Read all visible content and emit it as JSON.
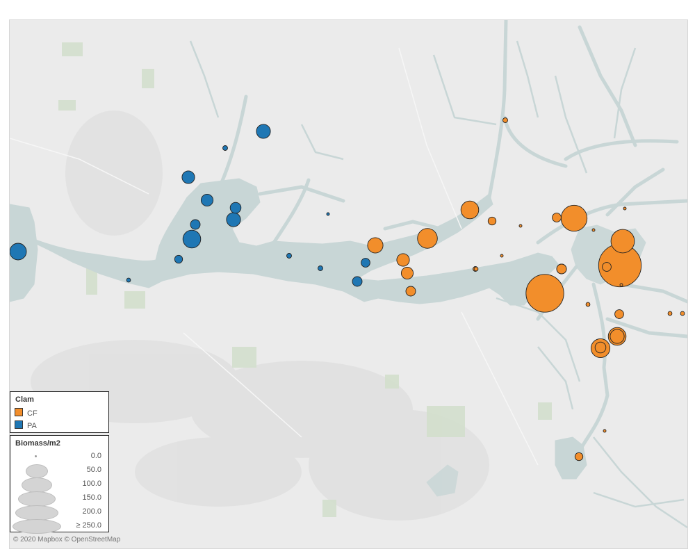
{
  "legend": {
    "clam_title": "Clam",
    "species": [
      {
        "label": "CF",
        "color": "#f28e2b"
      },
      {
        "label": "PA",
        "color": "#1f77b4"
      }
    ],
    "size_title": "Biomass/m2",
    "size_steps": [
      "0.0",
      "50.0",
      "100.0",
      "150.0",
      "200.0",
      "≥ 250.0"
    ]
  },
  "attribution": "© 2020 Mapbox © OpenStreetMap",
  "chart_data": {
    "type": "scatter",
    "encoding": "proportional symbol map; color = Clam species, circle size = Biomass/m2",
    "series": [
      {
        "name": "PA",
        "color": "#1f77b4",
        "points": [
          {
            "biomass": 35
          },
          {
            "biomass": 25
          },
          {
            "biomass": 3
          },
          {
            "biomass": 20
          },
          {
            "biomass": 18
          },
          {
            "biomass": 15
          },
          {
            "biomass": 25
          },
          {
            "biomass": 12
          },
          {
            "biomass": 40
          },
          {
            "biomass": 8
          },
          {
            "biomass": 2
          },
          {
            "biomass": 3
          },
          {
            "biomass": 1
          },
          {
            "biomass": 3
          },
          {
            "biomass": 12
          },
          {
            "biomass": 10
          }
        ]
      },
      {
        "name": "CF",
        "color": "#f28e2b",
        "points": [
          {
            "biomass": 3
          },
          {
            "biomass": 40
          },
          {
            "biomass": 8
          },
          {
            "biomass": 85
          },
          {
            "biomass": 10
          },
          {
            "biomass": 1
          },
          {
            "biomass": 1
          },
          {
            "biomass": 1
          },
          {
            "biomass": 1
          },
          {
            "biomass": 50
          },
          {
            "biomass": 30
          },
          {
            "biomass": 20
          },
          {
            "biomass": 18
          },
          {
            "biomass": 12
          },
          {
            "biomass": 2
          },
          {
            "biomass": 2
          },
          {
            "biomass": 10
          },
          {
            "biomass": 12
          },
          {
            "biomass": 25
          },
          {
            "biomass": 2
          },
          {
            "biomass": 2
          },
          {
            "biomass": 180
          },
          {
            "biomass": 15
          },
          {
            "biomass": 8
          },
          {
            "biomass": 1
          },
          {
            "biomass": 230
          },
          {
            "biomass": 70
          },
          {
            "biomass": 10
          },
          {
            "biomass": 1
          },
          {
            "biomass": 45
          },
          {
            "biomass": 40
          },
          {
            "biomass": 3
          },
          {
            "biomass": 12
          }
        ]
      }
    ]
  }
}
